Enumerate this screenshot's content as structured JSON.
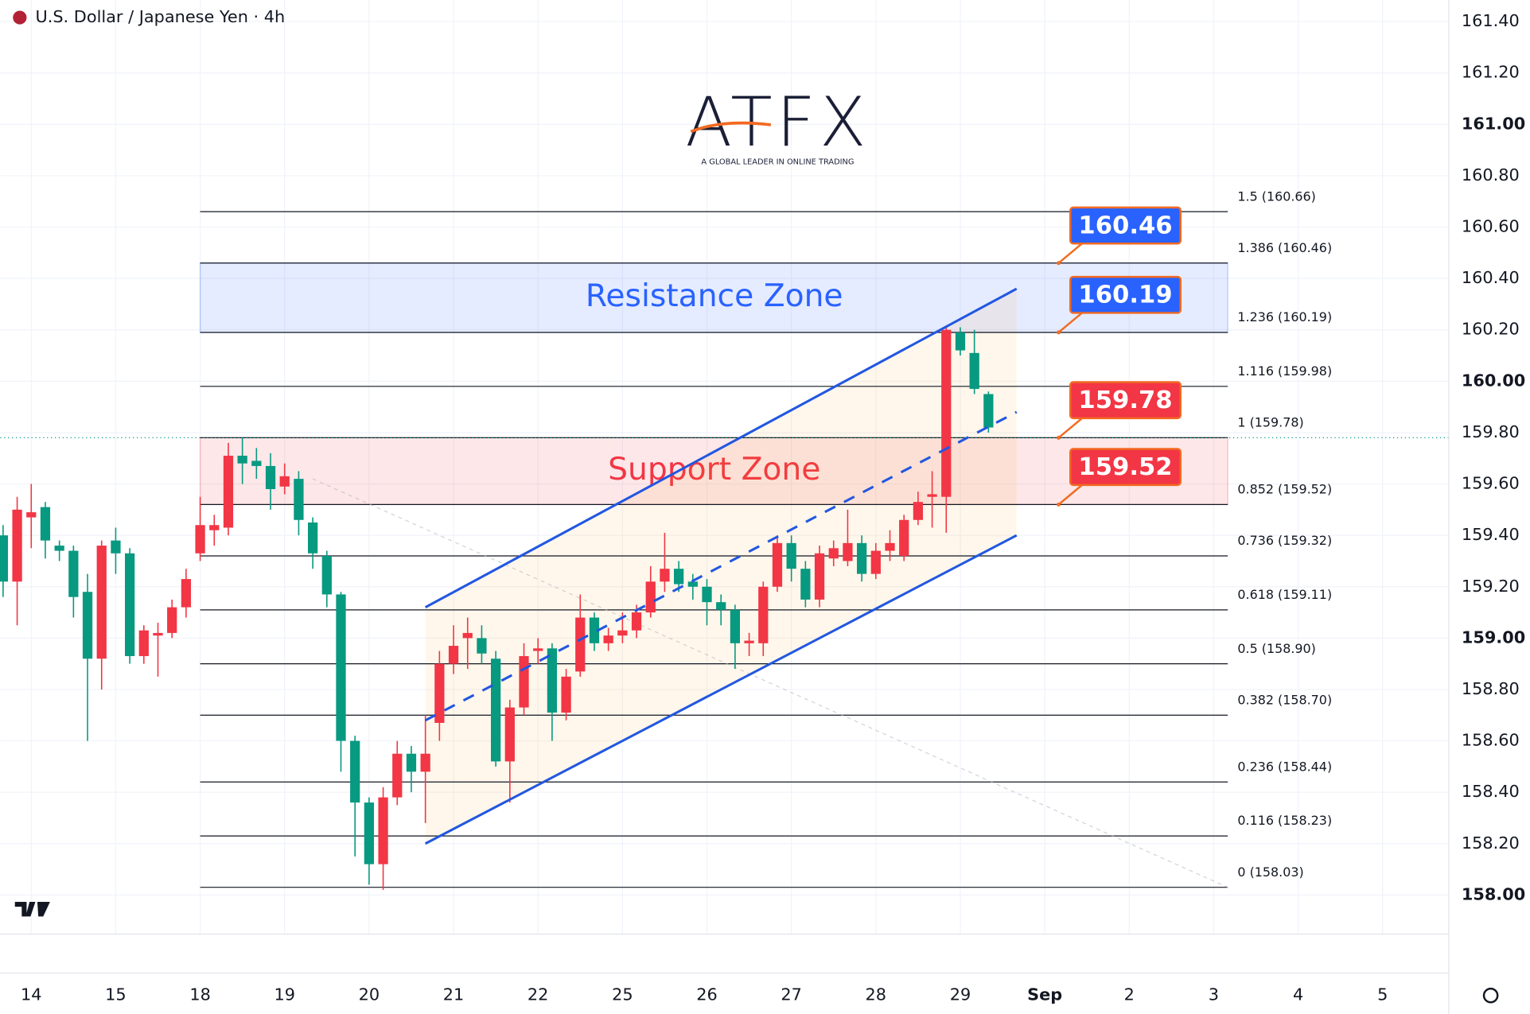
{
  "chart_data": {
    "type": "candlestick",
    "title": "U.S. Dollar / Japanese Yen · 4h",
    "logo": {
      "name": "ATFX",
      "tagline": "A GLOBAL LEADER IN ONLINE TRADING"
    },
    "ylim": [
      157.848,
      161.484
    ],
    "yticks": [
      {
        "value": 158.0,
        "label": "158.00"
      },
      {
        "value": 158.2,
        "label": "158.20"
      },
      {
        "value": 158.4,
        "label": "158.40"
      },
      {
        "value": 158.6,
        "label": "158.60"
      },
      {
        "value": 158.8,
        "label": "158.80"
      },
      {
        "value": 159.0,
        "label": "159.00"
      },
      {
        "value": 159.2,
        "label": "159.20"
      },
      {
        "value": 159.4,
        "label": "159.40"
      },
      {
        "value": 159.6,
        "label": "159.60"
      },
      {
        "value": 159.8,
        "label": "159.80"
      },
      {
        "value": 160.0,
        "label": "160.00"
      },
      {
        "value": 160.2,
        "label": "160.20"
      },
      {
        "value": 160.4,
        "label": "160.40"
      },
      {
        "value": 160.6,
        "label": "160.60"
      },
      {
        "value": 160.8,
        "label": "160.80"
      },
      {
        "value": 161.0,
        "label": "161.00"
      },
      {
        "value": 161.2,
        "label": "161.20"
      },
      {
        "value": 161.4,
        "label": "161.40"
      }
    ],
    "xlim": [
      -2.2,
      100.7
    ],
    "xticks": [
      {
        "value": 0,
        "label": "14"
      },
      {
        "value": 6,
        "label": "15"
      },
      {
        "value": 12,
        "label": "18"
      },
      {
        "value": 18,
        "label": "19"
      },
      {
        "value": 24,
        "label": "20"
      },
      {
        "value": 30,
        "label": "21"
      },
      {
        "value": 36,
        "label": "22"
      },
      {
        "value": 42,
        "label": "25"
      },
      {
        "value": 48,
        "label": "26"
      },
      {
        "value": 54,
        "label": "27"
      },
      {
        "value": 60,
        "label": "28"
      },
      {
        "value": 66,
        "label": "29"
      },
      {
        "value": 72,
        "label": "Sep"
      },
      {
        "value": 78,
        "label": "2"
      },
      {
        "value": 84,
        "label": "3"
      },
      {
        "value": 90,
        "label": "4"
      },
      {
        "value": 96,
        "label": "5"
      }
    ],
    "grid": true,
    "up_color": "#f23645",
    "down_color": "#089981",
    "x": [
      -2,
      -1,
      0,
      1,
      2,
      3,
      4,
      5,
      6,
      7,
      8,
      9,
      10,
      11,
      12,
      13,
      14,
      15,
      16,
      17,
      18,
      19,
      20,
      21,
      22,
      23,
      24,
      25,
      26,
      27,
      28,
      29,
      30,
      31,
      32,
      33,
      34,
      35,
      36,
      37,
      38,
      39,
      40,
      41,
      42,
      43,
      44,
      45,
      46,
      47,
      48,
      49,
      50,
      51,
      52,
      53,
      54,
      55,
      56,
      57,
      58,
      59,
      60,
      61,
      62,
      63,
      64,
      65,
      66,
      67,
      68
    ],
    "open": [
      159.4,
      159.22,
      159.47,
      159.51,
      159.36,
      159.34,
      159.18,
      158.92,
      159.38,
      159.33,
      158.93,
      159.01,
      159.02,
      159.12,
      159.33,
      159.42,
      159.43,
      159.71,
      159.69,
      159.67,
      159.59,
      159.62,
      159.45,
      159.32,
      159.17,
      158.6,
      158.36,
      158.12,
      158.38,
      158.55,
      158.48,
      158.67,
      158.9,
      159.0,
      159.0,
      158.92,
      158.52,
      158.73,
      158.95,
      158.96,
      158.71,
      158.87,
      159.08,
      158.98,
      159.01,
      159.03,
      159.1,
      159.22,
      159.27,
      159.22,
      159.2,
      159.14,
      159.11,
      158.98,
      158.98,
      159.2,
      159.37,
      159.27,
      159.15,
      159.31,
      159.3,
      159.37,
      159.25,
      159.34,
      159.32,
      159.46,
      159.55,
      159.55,
      160.19,
      160.11,
      159.95
    ],
    "high": [
      159.44,
      159.55,
      159.6,
      159.53,
      159.38,
      159.36,
      159.25,
      159.38,
      159.43,
      159.35,
      159.05,
      159.06,
      159.15,
      159.27,
      159.55,
      159.48,
      159.76,
      159.78,
      159.74,
      159.72,
      159.68,
      159.65,
      159.47,
      159.34,
      159.18,
      158.62,
      158.38,
      158.42,
      158.6,
      158.58,
      158.7,
      158.95,
      159.05,
      159.08,
      159.05,
      158.95,
      158.76,
      158.98,
      159.0,
      158.98,
      158.88,
      159.17,
      159.1,
      159.04,
      159.1,
      159.13,
      159.28,
      159.41,
      159.3,
      159.25,
      159.23,
      159.17,
      159.13,
      159.02,
      159.22,
      159.4,
      159.4,
      159.3,
      159.36,
      159.38,
      159.5,
      159.4,
      159.37,
      159.42,
      159.48,
      159.57,
      159.65,
      160.21,
      160.21,
      160.2,
      159.96
    ],
    "low": [
      159.16,
      159.05,
      159.35,
      159.31,
      159.3,
      159.08,
      158.6,
      158.8,
      159.25,
      158.9,
      158.9,
      158.85,
      159.0,
      159.08,
      159.3,
      159.36,
      159.4,
      159.6,
      159.62,
      159.5,
      159.56,
      159.4,
      159.27,
      159.12,
      158.48,
      158.15,
      158.04,
      158.02,
      158.35,
      158.4,
      158.28,
      158.6,
      158.86,
      158.88,
      158.9,
      158.5,
      158.36,
      158.7,
      158.9,
      158.6,
      158.68,
      158.85,
      158.95,
      158.95,
      158.98,
      159.0,
      159.08,
      159.18,
      159.18,
      159.15,
      159.05,
      159.05,
      158.88,
      158.93,
      158.93,
      159.18,
      159.22,
      159.12,
      159.12,
      159.28,
      159.28,
      159.22,
      159.23,
      159.3,
      159.3,
      159.44,
      159.43,
      159.41,
      160.1,
      159.95,
      159.8
    ],
    "close": [
      159.22,
      159.5,
      159.49,
      159.38,
      159.34,
      159.16,
      158.92,
      159.36,
      159.33,
      158.93,
      159.03,
      159.02,
      159.12,
      159.23,
      159.44,
      159.44,
      159.71,
      159.68,
      159.67,
      159.58,
      159.63,
      159.46,
      159.33,
      159.17,
      158.6,
      158.36,
      158.12,
      158.38,
      158.55,
      158.48,
      158.55,
      158.9,
      158.97,
      159.02,
      158.94,
      158.52,
      158.73,
      158.93,
      158.96,
      158.71,
      158.85,
      159.08,
      158.98,
      159.01,
      159.03,
      159.1,
      159.22,
      159.27,
      159.21,
      159.2,
      159.14,
      159.11,
      158.98,
      158.99,
      159.2,
      159.37,
      159.27,
      159.15,
      159.33,
      159.35,
      159.37,
      159.25,
      159.34,
      159.37,
      159.46,
      159.53,
      159.56,
      160.2,
      160.12,
      159.97,
      159.82
    ],
    "current_price": 159.78,
    "fib_levels": [
      {
        "value": 158.03,
        "label": "0 (158.03)"
      },
      {
        "value": 158.23,
        "label": "0.116 (158.23)"
      },
      {
        "value": 158.44,
        "label": "0.236 (158.44)"
      },
      {
        "value": 158.7,
        "label": "0.382 (158.70)"
      },
      {
        "value": 158.9,
        "label": "0.5 (158.90)"
      },
      {
        "value": 159.11,
        "label": "0.618 (159.11)"
      },
      {
        "value": 159.32,
        "label": "0.736 (159.32)"
      },
      {
        "value": 159.52,
        "label": "0.852 (159.52)"
      },
      {
        "value": 159.78,
        "label": "1 (159.78)"
      },
      {
        "value": 159.98,
        "label": "1.116 (159.98)"
      },
      {
        "value": 160.19,
        "label": "1.236 (160.19)"
      },
      {
        "value": 160.46,
        "label": "1.386 (160.46)"
      },
      {
        "value": 160.66,
        "label": "1.5 (160.66)"
      }
    ],
    "fib_x": [
      12,
      85
    ],
    "zones": [
      {
        "name": "Resistance Zone",
        "low": 160.19,
        "high": 160.46,
        "color": "#2962ff"
      },
      {
        "name": "Support Zone",
        "low": 159.52,
        "high": 159.78,
        "color": "#f23645"
      }
    ],
    "channel": {
      "color": "#2257e0",
      "x": [
        28,
        70
      ],
      "upper": [
        159.12,
        160.36
      ],
      "middle": [
        158.68,
        159.88
      ],
      "lower": [
        158.2,
        159.4
      ]
    },
    "trendline": {
      "x": [
        20,
        85
      ],
      "y": [
        159.62,
        158.03
      ]
    },
    "callouts": [
      {
        "value": 160.46,
        "color": "#2962ff"
      },
      {
        "value": 160.19,
        "color": "#2962ff"
      },
      {
        "value": 159.78,
        "color": "#f23645"
      },
      {
        "value": 159.52,
        "color": "#f23645"
      }
    ]
  }
}
